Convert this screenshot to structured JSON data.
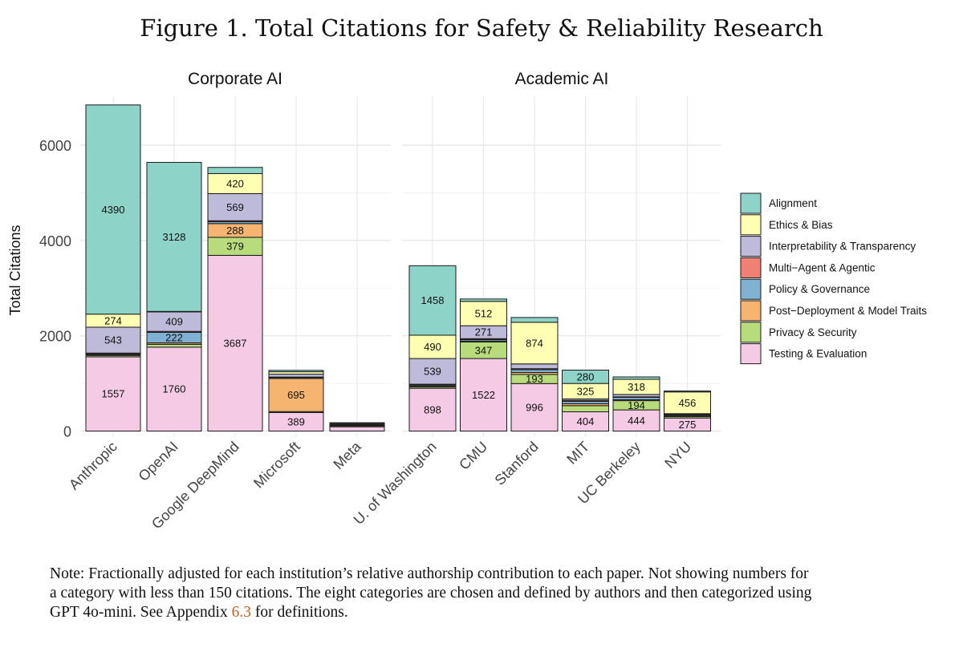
{
  "title": "Figure 1. Total Citations for Safety & Reliability Research",
  "note": {
    "line1": "Note: Fractionally adjusted for each institution’s relative authorship contribution to each paper. Not showing numbers for",
    "line2": "a category with less than 150 citations. The eight categories are chosen and defined by authors and then categorized using",
    "line3_pre": "GPT 4o-mini. See Appendix ",
    "line3_link": "6.3",
    "line3_post": " for definitions."
  },
  "chart_data": {
    "type": "bar",
    "stacked": true,
    "ylabel": "Total Citations",
    "ylim": [
      0,
      6800
    ],
    "yticks": [
      0,
      2000,
      4000,
      6000
    ],
    "label_threshold": 150,
    "legend_position": "right",
    "categories": [
      {
        "name": "Testing & Evaluation",
        "color": "#f4cae4"
      },
      {
        "name": "Privacy & Security",
        "color": "#b8dc7c"
      },
      {
        "name": "Post−Deployment & Model Traits",
        "color": "#f5b46f"
      },
      {
        "name": "Policy & Governance",
        "color": "#80b1d3"
      },
      {
        "name": "Multi−Agent & Agentic",
        "color": "#f08074"
      },
      {
        "name": "Interpretability & Transparency",
        "color": "#bebada"
      },
      {
        "name": "Ethics & Bias",
        "color": "#ffffb3"
      },
      {
        "name": "Alignment",
        "color": "#8dd3c7"
      }
    ],
    "legend_order": [
      "Alignment",
      "Ethics & Bias",
      "Interpretability & Transparency",
      "Multi−Agent & Agentic",
      "Policy & Governance",
      "Post−Deployment & Model Traits",
      "Privacy & Security",
      "Testing & Evaluation"
    ],
    "panels": [
      {
        "title": "Corporate AI",
        "institutions": [
          {
            "name": "Anthropic",
            "values": [
              1557,
              30,
              10,
              20,
              20,
              543,
              274,
              4390
            ]
          },
          {
            "name": "OpenAI",
            "values": [
              1760,
              60,
              30,
              222,
              20,
              409,
              10,
              3128
            ]
          },
          {
            "name": "Google DeepMind",
            "values": [
              3687,
              379,
              288,
              40,
              20,
              569,
              420,
              130
            ]
          },
          {
            "name": "Microsoft",
            "values": [
              389,
              20,
              695,
              20,
              10,
              60,
              50,
              30
            ]
          },
          {
            "name": "Meta",
            "values": [
              90,
              20,
              10,
              10,
              5,
              10,
              20,
              10
            ]
          }
        ]
      },
      {
        "title": "Academic AI",
        "institutions": [
          {
            "name": "U. of Washington",
            "values": [
              898,
              30,
              20,
              20,
              15,
              539,
              490,
              1458
            ]
          },
          {
            "name": "CMU",
            "values": [
              1522,
              347,
              20,
              30,
              20,
              271,
              512,
              50
            ]
          },
          {
            "name": "Stanford",
            "values": [
              996,
              193,
              40,
              60,
              20,
              100,
              874,
              100
            ]
          },
          {
            "name": "MIT",
            "values": [
              404,
              130,
              40,
              50,
              20,
              30,
              325,
              280
            ]
          },
          {
            "name": "UC Berkeley",
            "values": [
              444,
              194,
              20,
              50,
              10,
              50,
              318,
              50
            ]
          },
          {
            "name": "NYU",
            "values": [
              275,
              30,
              10,
              20,
              10,
              20,
              456,
              20
            ]
          }
        ]
      }
    ]
  }
}
